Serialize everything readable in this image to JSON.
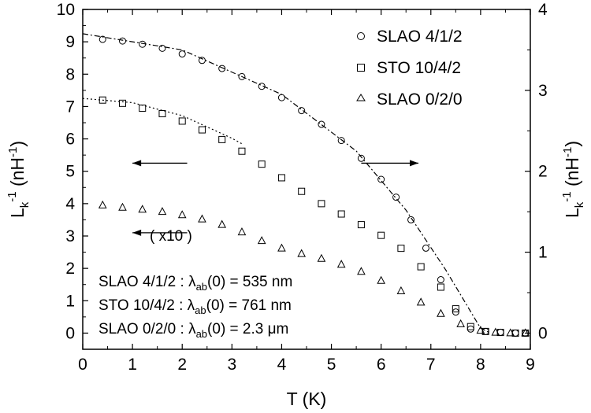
{
  "chart_data": {
    "type": "scatter",
    "xlabel": "T (K)",
    "ylabel_left": "L_k^-1 (nH^-1)",
    "ylabel_right": "L_k^-1 (nH^-1)",
    "xlim": [
      0,
      9
    ],
    "ylim_left": [
      -0.5,
      10
    ],
    "ylim_right": [
      -0.2,
      4
    ],
    "x_ticks": [
      "0",
      "1",
      "2",
      "3",
      "4",
      "5",
      "6",
      "7",
      "8",
      "9"
    ],
    "y_left_ticks": [
      "0",
      "1",
      "2",
      "3",
      "4",
      "5",
      "6",
      "7",
      "8",
      "9",
      "10"
    ],
    "y_right_ticks": [
      "0",
      "1",
      "2",
      "3",
      "4"
    ],
    "legend": [
      {
        "label": "SLAO 4/1/2",
        "marker": "circle",
        "axis": "right"
      },
      {
        "label": "STO 10/4/2",
        "marker": "square",
        "axis": "left"
      },
      {
        "label": "SLAO 0/2/0",
        "marker": "triangle",
        "axis": "left",
        "scale_note": "( x10 )"
      }
    ],
    "annotations": {
      "scale_note": "( x10 )",
      "penetration_depths": [
        {
          "sample": "SLAO 4/1/2",
          "quantity": "λab(0)",
          "value": "535 nm"
        },
        {
          "sample": "STO 10/4/2",
          "quantity": "λab(0)",
          "value": "761 nm"
        },
        {
          "sample": "SLAO 0/2/0",
          "quantity": "λab(0)",
          "value": "2.3 μm"
        }
      ]
    },
    "series": [
      {
        "name": "SLAO 4/1/2",
        "axis": "right",
        "marker": "circle",
        "x": [
          0.4,
          0.8,
          1.2,
          1.6,
          2.0,
          2.4,
          2.8,
          3.2,
          3.6,
          4.0,
          4.4,
          4.8,
          5.2,
          5.6,
          6.0,
          6.3,
          6.6,
          6.9,
          7.2,
          7.5,
          7.8,
          8.1,
          8.4,
          8.7,
          8.9
        ],
        "y": [
          3.63,
          3.61,
          3.57,
          3.52,
          3.45,
          3.37,
          3.27,
          3.17,
          3.05,
          2.91,
          2.75,
          2.58,
          2.38,
          2.16,
          1.9,
          1.68,
          1.4,
          1.05,
          0.66,
          0.26,
          0.05,
          0.02,
          0.01,
          0.0,
          0.0
        ],
        "fit": {
          "x": [
            0.0,
            2.0,
            4.0,
            5.5,
            6.5,
            7.3,
            8.0,
            8.2
          ],
          "y": [
            3.7,
            3.5,
            2.95,
            2.25,
            1.52,
            0.78,
            0.06,
            0.0
          ]
        }
      },
      {
        "name": "STO 10/4/2",
        "axis": "left",
        "marker": "square",
        "x": [
          0.4,
          0.8,
          1.2,
          1.6,
          2.0,
          2.4,
          2.8,
          3.2,
          3.6,
          4.0,
          4.4,
          4.8,
          5.2,
          5.6,
          6.0,
          6.4,
          6.8,
          7.2,
          7.5,
          7.8,
          8.1,
          8.4,
          8.7,
          8.9
        ],
        "y": [
          7.2,
          7.1,
          6.95,
          6.78,
          6.55,
          6.28,
          5.98,
          5.62,
          5.22,
          4.8,
          4.38,
          4.0,
          3.68,
          3.35,
          3.02,
          2.62,
          2.05,
          1.42,
          0.75,
          0.2,
          0.05,
          0.02,
          0.0,
          0.0
        ],
        "fit": {
          "x": [
            0.0,
            1.0,
            2.0,
            3.0,
            3.2
          ],
          "y": [
            7.25,
            7.12,
            6.72,
            6.02,
            5.85
          ]
        }
      },
      {
        "name": "SLAO 0/2/0",
        "axis": "left",
        "marker": "triangle",
        "x": [
          0.4,
          0.8,
          1.2,
          1.6,
          2.0,
          2.4,
          2.8,
          3.2,
          3.6,
          4.0,
          4.4,
          4.8,
          5.2,
          5.6,
          6.0,
          6.4,
          6.8,
          7.2,
          7.6,
          8.0,
          8.3,
          8.6,
          8.9
        ],
        "y": [
          3.95,
          3.88,
          3.82,
          3.75,
          3.65,
          3.52,
          3.35,
          3.12,
          2.85,
          2.62,
          2.45,
          2.3,
          2.12,
          1.9,
          1.62,
          1.3,
          0.95,
          0.6,
          0.28,
          0.08,
          0.02,
          0.0,
          0.0
        ]
      }
    ]
  }
}
